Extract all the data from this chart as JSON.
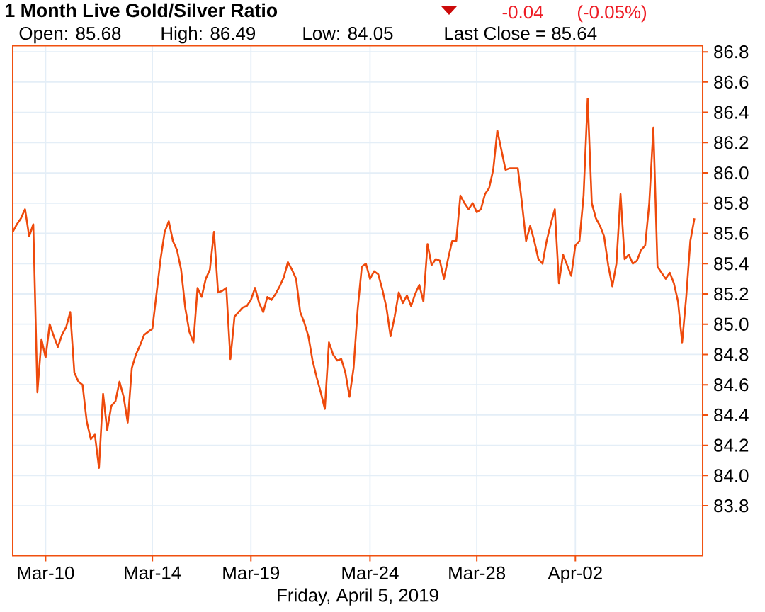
{
  "chart_data": {
    "type": "line",
    "title": "1 Month Live Gold/Silver Ratio",
    "xlabel": "Friday, April 5, 2019",
    "annotations": [
      "-0.04",
      "(-0.05%)",
      "Open: 85.68",
      "High: 86.49",
      "Low: 84.05",
      "Last Close = 85.64"
    ],
    "color": "#ee4a0c",
    "grid": true,
    "ylim": [
      83.47,
      86.84
    ],
    "yticks": [
      83.8,
      {
        "value": 84,
        "label": "84.0"
      },
      84.2,
      84.4,
      84.6,
      84.8,
      {
        "value": 85,
        "label": "85.0"
      },
      85.2,
      85.4,
      85.6,
      85.8,
      {
        "value": 86,
        "label": "86.0"
      },
      86.2,
      86.4,
      86.6,
      86.8
    ],
    "categories": [
      null,
      null,
      null,
      null,
      null,
      null,
      null,
      null,
      "Mar-10",
      null,
      null,
      null,
      null,
      null,
      null,
      null,
      null,
      null,
      null,
      null,
      null,
      null,
      null,
      null,
      null,
      null,
      null,
      null,
      null,
      null,
      null,
      null,
      null,
      null,
      "Mar-14",
      null,
      null,
      null,
      null,
      null,
      null,
      null,
      null,
      null,
      null,
      null,
      null,
      null,
      null,
      null,
      null,
      null,
      null,
      null,
      null,
      null,
      null,
      null,
      "Mar-19",
      null,
      null,
      null,
      null,
      null,
      null,
      null,
      null,
      null,
      null,
      null,
      null,
      null,
      null,
      null,
      null,
      null,
      null,
      null,
      null,
      null,
      null,
      null,
      null,
      null,
      null,
      null,
      null,
      "Mar-24",
      null,
      null,
      null,
      null,
      null,
      null,
      null,
      null,
      null,
      null,
      null,
      null,
      null,
      null,
      null,
      null,
      null,
      null,
      null,
      null,
      null,
      null,
      null,
      null,
      null,
      "Mar-28",
      null,
      null,
      null,
      null,
      null,
      null,
      null,
      null,
      null,
      null,
      null,
      null,
      null,
      null,
      null,
      null,
      null,
      null,
      null,
      null,
      null,
      null,
      null,
      "Apr-02",
      null,
      null,
      null,
      null,
      null,
      null,
      null,
      null,
      null,
      null,
      null,
      null,
      null,
      null,
      null,
      null,
      null,
      null,
      null,
      null,
      null,
      null,
      null,
      null,
      null,
      null,
      null,
      null,
      null
    ],
    "values": [
      85.61,
      85.66,
      85.7,
      85.76,
      85.58,
      85.66,
      84.55,
      84.9,
      84.78,
      85.0,
      84.92,
      84.85,
      84.93,
      84.98,
      85.08,
      84.68,
      84.62,
      84.6,
      84.36,
      84.24,
      84.27,
      84.05,
      84.54,
      84.3,
      84.46,
      84.49,
      84.62,
      84.52,
      84.35,
      84.71,
      84.8,
      84.86,
      84.93,
      84.95,
      84.97,
      85.2,
      85.43,
      85.61,
      85.68,
      85.55,
      85.49,
      85.36,
      85.11,
      84.95,
      84.88,
      85.24,
      85.18,
      85.3,
      85.36,
      85.61,
      85.21,
      85.22,
      85.24,
      84.77,
      85.05,
      85.08,
      85.11,
      85.12,
      85.16,
      85.24,
      85.14,
      85.08,
      85.18,
      85.16,
      85.2,
      85.25,
      85.31,
      85.41,
      85.36,
      85.3,
      85.08,
      85.01,
      84.92,
      84.76,
      84.65,
      84.55,
      84.44,
      84.88,
      84.8,
      84.76,
      84.77,
      84.68,
      84.52,
      84.71,
      85.1,
      85.38,
      85.4,
      85.3,
      85.35,
      85.33,
      85.23,
      85.11,
      84.92,
      85.05,
      85.21,
      85.14,
      85.19,
      85.12,
      85.2,
      85.26,
      85.15,
      85.53,
      85.39,
      85.43,
      85.42,
      85.3,
      85.43,
      85.55,
      85.55,
      85.85,
      85.8,
      85.76,
      85.8,
      85.74,
      85.76,
      85.86,
      85.9,
      86.02,
      86.28,
      86.15,
      86.02,
      86.03,
      86.03,
      86.03,
      85.8,
      85.55,
      85.65,
      85.55,
      85.43,
      85.4,
      85.55,
      85.66,
      85.76,
      85.27,
      85.46,
      85.39,
      85.32,
      85.52,
      85.55,
      85.85,
      86.49,
      85.8,
      85.7,
      85.65,
      85.58,
      85.39,
      85.25,
      85.4,
      85.86,
      85.43,
      85.46,
      85.4,
      85.42,
      85.49,
      85.52,
      85.8,
      86.3,
      85.38,
      85.34,
      85.3,
      85.34,
      85.27,
      85.15,
      84.88,
      85.18,
      85.55,
      85.7
    ]
  }
}
